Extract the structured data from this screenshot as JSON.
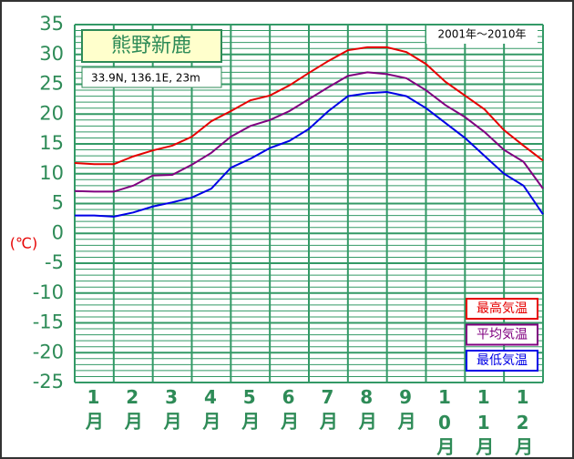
{
  "chart_data": {
    "type": "line",
    "title": "熊野新鹿",
    "subtitle": "33.9N, 136.1E, 23m",
    "period": "2001年～2010年",
    "ylabel": "(℃)",
    "categories": [
      "1月",
      "2月",
      "3月",
      "4月",
      "5月",
      "6月",
      "7月",
      "8月",
      "9月",
      "10月",
      "11月",
      "12月"
    ],
    "x": [
      0,
      0.5,
      1,
      1.5,
      2,
      2.5,
      3,
      3.5,
      4,
      4.5,
      5,
      5.5,
      6,
      6.5,
      7,
      7.5,
      8,
      8.5,
      9,
      9.5,
      10,
      10.5,
      11,
      11.5,
      12
    ],
    "xlim": [
      0,
      12
    ],
    "series": [
      {
        "name": "最高気温",
        "color": "#e60000",
        "values": [
          11.8,
          11.6,
          11.6,
          12.9,
          13.9,
          14.7,
          16.2,
          18.8,
          20.5,
          22.3,
          23.1,
          24.8,
          26.9,
          28.9,
          30.7,
          31.2,
          31.2,
          30.4,
          28.4,
          25.4,
          23.1,
          20.8,
          17.3,
          14.7,
          12.2
        ]
      },
      {
        "name": "平均気温",
        "color": "#800080",
        "values": [
          7.1,
          7,
          7,
          8,
          9.7,
          9.8,
          11.5,
          13.5,
          16.2,
          18,
          19,
          20.5,
          22.5,
          24.5,
          26.4,
          27,
          26.7,
          26,
          24,
          21.5,
          19.5,
          17,
          14,
          12,
          7.5
        ]
      },
      {
        "name": "最低気温",
        "color": "#0000e6",
        "values": [
          3,
          3,
          2.8,
          3.5,
          4.5,
          5.2,
          6,
          7.5,
          11,
          12.5,
          14.3,
          15.5,
          17.5,
          20.5,
          23,
          23.5,
          23.7,
          23,
          21,
          18.5,
          16,
          13,
          10,
          8,
          3.2
        ]
      }
    ],
    "ylim": [
      -25,
      35
    ],
    "yticks": [
      -25,
      -20,
      -15,
      -10,
      -5,
      0,
      5,
      10,
      15,
      20,
      25,
      30,
      35
    ],
    "minor_yticks": [
      -25,
      -24,
      -23,
      -22,
      -21,
      -20,
      -19,
      -18,
      -17,
      -16,
      -15,
      -14,
      -13,
      -12,
      -11,
      -10,
      -9,
      -8,
      -7,
      -6,
      -5,
      -4,
      -3,
      -2,
      -1,
      0,
      1,
      2,
      3,
      4,
      5,
      6,
      7,
      8,
      9,
      10,
      11,
      12,
      13,
      14,
      15,
      16,
      17,
      18,
      19,
      20,
      21,
      22,
      23,
      24,
      25,
      26,
      27,
      28,
      29,
      30,
      31,
      32,
      33,
      34,
      35
    ],
    "grid": true,
    "grid_color": "#339966"
  }
}
